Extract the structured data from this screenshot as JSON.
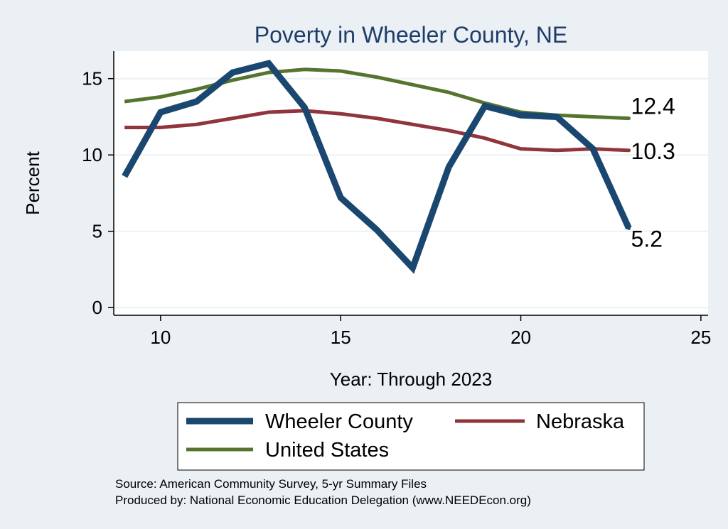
{
  "chart_data": {
    "type": "line",
    "title": "Poverty in Wheeler County, NE",
    "xlabel": "Year: Through 2023",
    "ylabel": "Percent",
    "xlim": [
      8.7,
      25.2
    ],
    "ylim": [
      -0.5,
      16.8
    ],
    "x_ticks": [
      10,
      15,
      20,
      25
    ],
    "y_ticks": [
      0,
      5,
      10,
      15
    ],
    "grid": true,
    "series": [
      {
        "name": "Wheeler County",
        "color": "#1a476f",
        "x": [
          9,
          10,
          11,
          12,
          13,
          14,
          15,
          16,
          17,
          18,
          19,
          20,
          21,
          22,
          23
        ],
        "values": [
          8.6,
          12.8,
          13.5,
          15.4,
          16.0,
          13.1,
          7.2,
          5.1,
          2.6,
          9.2,
          13.2,
          12.6,
          12.5,
          10.4,
          5.2
        ],
        "end_label": "5.2"
      },
      {
        "name": "Nebraska",
        "color": "#90353b",
        "x": [
          9,
          10,
          11,
          12,
          13,
          14,
          15,
          16,
          17,
          18,
          19,
          20,
          21,
          22,
          23
        ],
        "values": [
          11.8,
          11.8,
          12.0,
          12.4,
          12.8,
          12.9,
          12.7,
          12.4,
          12.0,
          11.6,
          11.1,
          10.4,
          10.3,
          10.4,
          10.3
        ],
        "end_label": "10.3"
      },
      {
        "name": "United States",
        "color": "#55752f",
        "x": [
          9,
          10,
          11,
          12,
          13,
          14,
          15,
          16,
          17,
          18,
          19,
          20,
          21,
          22,
          23
        ],
        "values": [
          13.5,
          13.8,
          14.3,
          14.9,
          15.4,
          15.6,
          15.5,
          15.1,
          14.6,
          14.1,
          13.4,
          12.8,
          12.6,
          12.5,
          12.4
        ],
        "end_label": "12.4"
      }
    ],
    "legend": {
      "placement": "bottom",
      "entries": [
        "Wheeler County",
        "Nebraska",
        "United States"
      ]
    }
  },
  "footer": {
    "source": "Source: American Community Survey, 5-yr Summary Files",
    "produced_by": "Produced by: National Economic Education Delegation (www.NEEDEcon.org)"
  },
  "colors": {
    "background": "#ebf0f4",
    "plot_background": "#ffffff",
    "grid": "#eaf2f3",
    "title": "#1f3d6b"
  }
}
